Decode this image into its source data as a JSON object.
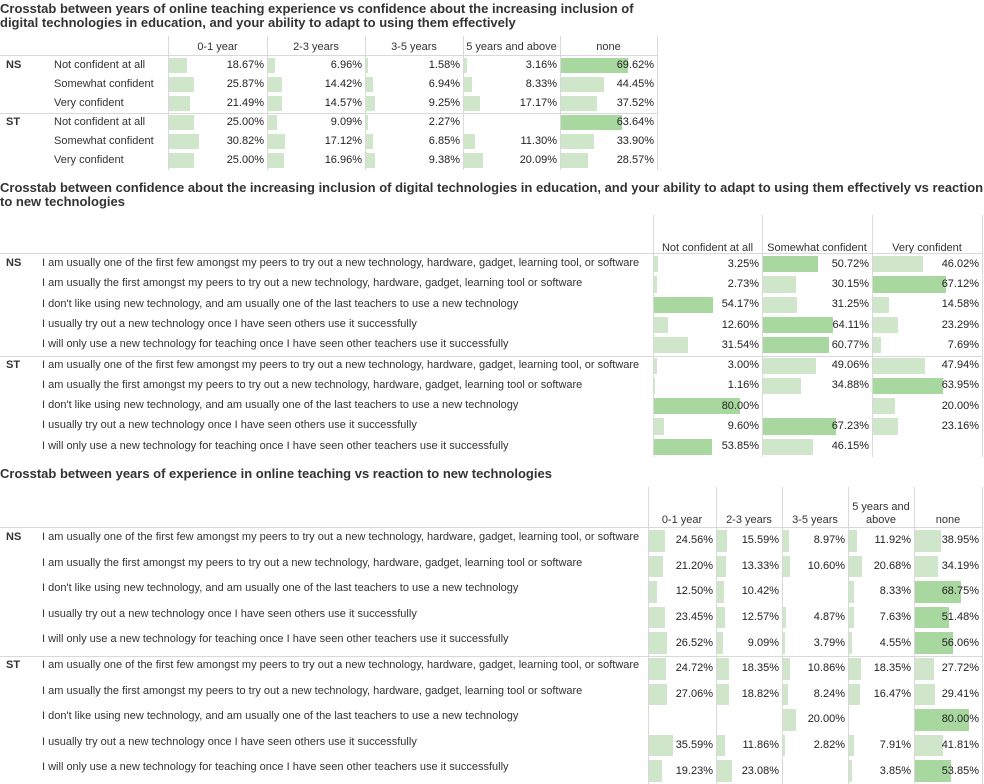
{
  "tables": [
    {
      "title_lines": [
        "Crosstab between years of online teaching experience vs confidence about the increasing inclusion of",
        "digital technologies in education, and your ability to adapt to using them effectively"
      ],
      "columns": [
        [
          "0-1 year"
        ],
        [
          "2-3 years"
        ],
        [
          "3-5 years"
        ],
        [
          "5 years and above"
        ],
        [
          "none"
        ]
      ],
      "groups": [
        {
          "name": "NS",
          "rows": [
            {
              "label": "Not confident at all",
              "values": [
                "18.67%",
                "6.96%",
                "1.58%",
                "3.16%",
                "69.62%"
              ],
              "fractions": [
                0.1867,
                0.0696,
                0.0158,
                0.0316,
                0.6962
              ]
            },
            {
              "label": "Somewhat confident",
              "values": [
                "25.87%",
                "14.42%",
                "6.94%",
                "8.33%",
                "44.45%"
              ],
              "fractions": [
                0.2587,
                0.1442,
                0.0694,
                0.0833,
                0.4445
              ]
            },
            {
              "label": "Very confident",
              "values": [
                "21.49%",
                "14.57%",
                "9.25%",
                "17.17%",
                "37.52%"
              ],
              "fractions": [
                0.2149,
                0.1457,
                0.0925,
                0.1717,
                0.3752
              ]
            }
          ]
        },
        {
          "name": "ST",
          "rows": [
            {
              "label": "Not confident at all",
              "values": [
                "25.00%",
                "9.09%",
                "2.27%",
                "",
                "63.64%"
              ],
              "fractions": [
                0.25,
                0.0909,
                0.0227,
                0,
                0.6364
              ]
            },
            {
              "label": "Somewhat confident",
              "values": [
                "30.82%",
                "17.12%",
                "6.85%",
                "11.30%",
                "33.90%"
              ],
              "fractions": [
                0.3082,
                0.1712,
                0.0685,
                0.113,
                0.339
              ]
            },
            {
              "label": "Very confident",
              "values": [
                "25.00%",
                "16.96%",
                "9.38%",
                "20.09%",
                "28.57%"
              ],
              "fractions": [
                0.25,
                0.1696,
                0.0938,
                0.2009,
                0.2857
              ]
            }
          ]
        }
      ]
    },
    {
      "title_lines": [
        "Crosstab between confidence about the increasing inclusion of digital technologies in education, and your ability to adapt to using them effectively vs reaction",
        "to new technologies"
      ],
      "columns": [
        [
          "Not confident at all"
        ],
        [
          "Somewhat confident"
        ],
        [
          "Very confident"
        ]
      ],
      "groups": [
        {
          "name": "NS",
          "rows": [
            {
              "label": "I am usually one of the first few amongst my peers to try out a new technology, hardware, gadget, learning tool, or software",
              "values": [
                "3.25%",
                "50.72%",
                "46.02%"
              ],
              "fractions": [
                0.0325,
                0.5072,
                0.4602
              ]
            },
            {
              "label": "I am usually the first amongst my peers to try out a new technology, hardware, gadget, learning tool or software",
              "values": [
                "2.73%",
                "30.15%",
                "67.12%"
              ],
              "fractions": [
                0.0273,
                0.3015,
                0.6712
              ]
            },
            {
              "label": "I don't like using new technology, and am usually one of the last teachers to use a new technology",
              "values": [
                "54.17%",
                "31.25%",
                "14.58%"
              ],
              "fractions": [
                0.5417,
                0.3125,
                0.1458
              ]
            },
            {
              "label": "I usually try out a new technology once I have seen others use it successfully",
              "values": [
                "12.60%",
                "64.11%",
                "23.29%"
              ],
              "fractions": [
                0.126,
                0.6411,
                0.2329
              ]
            },
            {
              "label": "I will only use a new technology for teaching once I have seen other teachers use it successfully",
              "values": [
                "31.54%",
                "60.77%",
                "7.69%"
              ],
              "fractions": [
                0.3154,
                0.6077,
                0.0769
              ]
            }
          ]
        },
        {
          "name": "ST",
          "rows": [
            {
              "label": "I am usually one of the first few amongst my peers to try out a new technology, hardware, gadget, learning tool, or software",
              "values": [
                "3.00%",
                "49.06%",
                "47.94%"
              ],
              "fractions": [
                0.03,
                0.4906,
                0.4794
              ]
            },
            {
              "label": "I am usually the first amongst my peers to try out a new technology, hardware, gadget, learning tool or software",
              "values": [
                "1.16%",
                "34.88%",
                "63.95%"
              ],
              "fractions": [
                0.0116,
                0.3488,
                0.6395
              ]
            },
            {
              "label": "I don't like using new technology, and am usually one of the last teachers to use a new technology",
              "values": [
                "80.00%",
                "",
                "20.00%"
              ],
              "fractions": [
                0.8,
                0,
                0.2
              ]
            },
            {
              "label": "I usually try out a new technology once I have seen others use it successfully",
              "values": [
                "9.60%",
                "67.23%",
                "23.16%"
              ],
              "fractions": [
                0.096,
                0.6723,
                0.2316
              ]
            },
            {
              "label": "I will only use a new technology for teaching once I have seen other teachers use it successfully",
              "values": [
                "53.85%",
                "46.15%",
                ""
              ],
              "fractions": [
                0.5385,
                0.4615,
                0
              ]
            }
          ]
        }
      ]
    },
    {
      "title_lines": [
        "Crosstab between years of experience in online teaching vs reaction to new technologies"
      ],
      "columns": [
        [
          "0-1 year"
        ],
        [
          "2-3 years"
        ],
        [
          "3-5 years"
        ],
        [
          "5 years and",
          "above"
        ],
        [
          "none"
        ]
      ],
      "groups": [
        {
          "name": "NS",
          "rows": [
            {
              "label": "I am usually one of the first few amongst my peers to try out a new technology, hardware, gadget, learning tool, or software",
              "values": [
                "24.56%",
                "15.59%",
                "8.97%",
                "11.92%",
                "38.95%"
              ],
              "fractions": [
                0.2456,
                0.1559,
                0.0897,
                0.1192,
                0.3895
              ]
            },
            {
              "label": "I am usually the first amongst my peers to try out a new technology, hardware, gadget, learning tool or software",
              "values": [
                "21.20%",
                "13.33%",
                "10.60%",
                "20.68%",
                "34.19%"
              ],
              "fractions": [
                0.212,
                0.1333,
                0.106,
                0.2068,
                0.3419
              ]
            },
            {
              "label": "I don't like using new technology, and am usually one of the last teachers to use a new technology",
              "values": [
                "12.50%",
                "10.42%",
                "",
                "8.33%",
                "68.75%"
              ],
              "fractions": [
                0.125,
                0.1042,
                0,
                0.0833,
                0.6875
              ]
            },
            {
              "label": "I usually try out a new technology once I have seen others use it successfully",
              "values": [
                "23.45%",
                "12.57%",
                "4.87%",
                "7.63%",
                "51.48%"
              ],
              "fractions": [
                0.2345,
                0.1257,
                0.0487,
                0.0763,
                0.5148
              ]
            },
            {
              "label": "I will only use a new technology for teaching once I have seen other teachers use it successfully",
              "values": [
                "26.52%",
                "9.09%",
                "3.79%",
                "4.55%",
                "56.06%"
              ],
              "fractions": [
                0.2652,
                0.0909,
                0.0379,
                0.0455,
                0.5606
              ]
            }
          ]
        },
        {
          "name": "ST",
          "rows": [
            {
              "label": "I am usually one of the first few amongst my peers to try out a new technology, hardware, gadget, learning tool, or software",
              "values": [
                "24.72%",
                "18.35%",
                "10.86%",
                "18.35%",
                "27.72%"
              ],
              "fractions": [
                0.2472,
                0.1835,
                0.1086,
                0.1835,
                0.2772
              ]
            },
            {
              "label": "I am usually the first amongst my peers to try out a new technology, hardware, gadget, learning tool or software",
              "values": [
                "27.06%",
                "18.82%",
                "8.24%",
                "16.47%",
                "29.41%"
              ],
              "fractions": [
                0.2706,
                0.1882,
                0.0824,
                0.1647,
                0.2941
              ]
            },
            {
              "label": "I don't like using new technology, and am usually one of the last teachers to use a new technology",
              "values": [
                "",
                "",
                "20.00%",
                "",
                "80.00%"
              ],
              "fractions": [
                0,
                0,
                0.2,
                0,
                0.8
              ]
            },
            {
              "label": "I usually try out a new technology once I have seen others use it successfully",
              "values": [
                "35.59%",
                "11.86%",
                "2.82%",
                "7.91%",
                "41.81%"
              ],
              "fractions": [
                0.3559,
                0.1186,
                0.0282,
                0.0791,
                0.4181
              ]
            },
            {
              "label": "I will only use a new technology for teaching once I have seen other teachers use it successfully",
              "values": [
                "19.23%",
                "23.08%",
                "",
                "3.85%",
                "53.85%"
              ],
              "fractions": [
                0.1923,
                0.2308,
                0,
                0.0385,
                0.5385
              ]
            }
          ]
        }
      ]
    }
  ],
  "chart_data": [
    {
      "type": "table",
      "title": "Crosstab between years of online teaching experience vs confidence about the increasing inclusion of digital technologies in education, and your ability to adapt to using them effectively"
    },
    {
      "type": "table",
      "title": "Crosstab between confidence about the increasing inclusion of digital technologies in education, and your ability to adapt to using them effectively vs reaction to new technologies"
    },
    {
      "type": "table",
      "title": "Crosstab between years of experience in online teaching vs reaction to new technologies"
    }
  ]
}
